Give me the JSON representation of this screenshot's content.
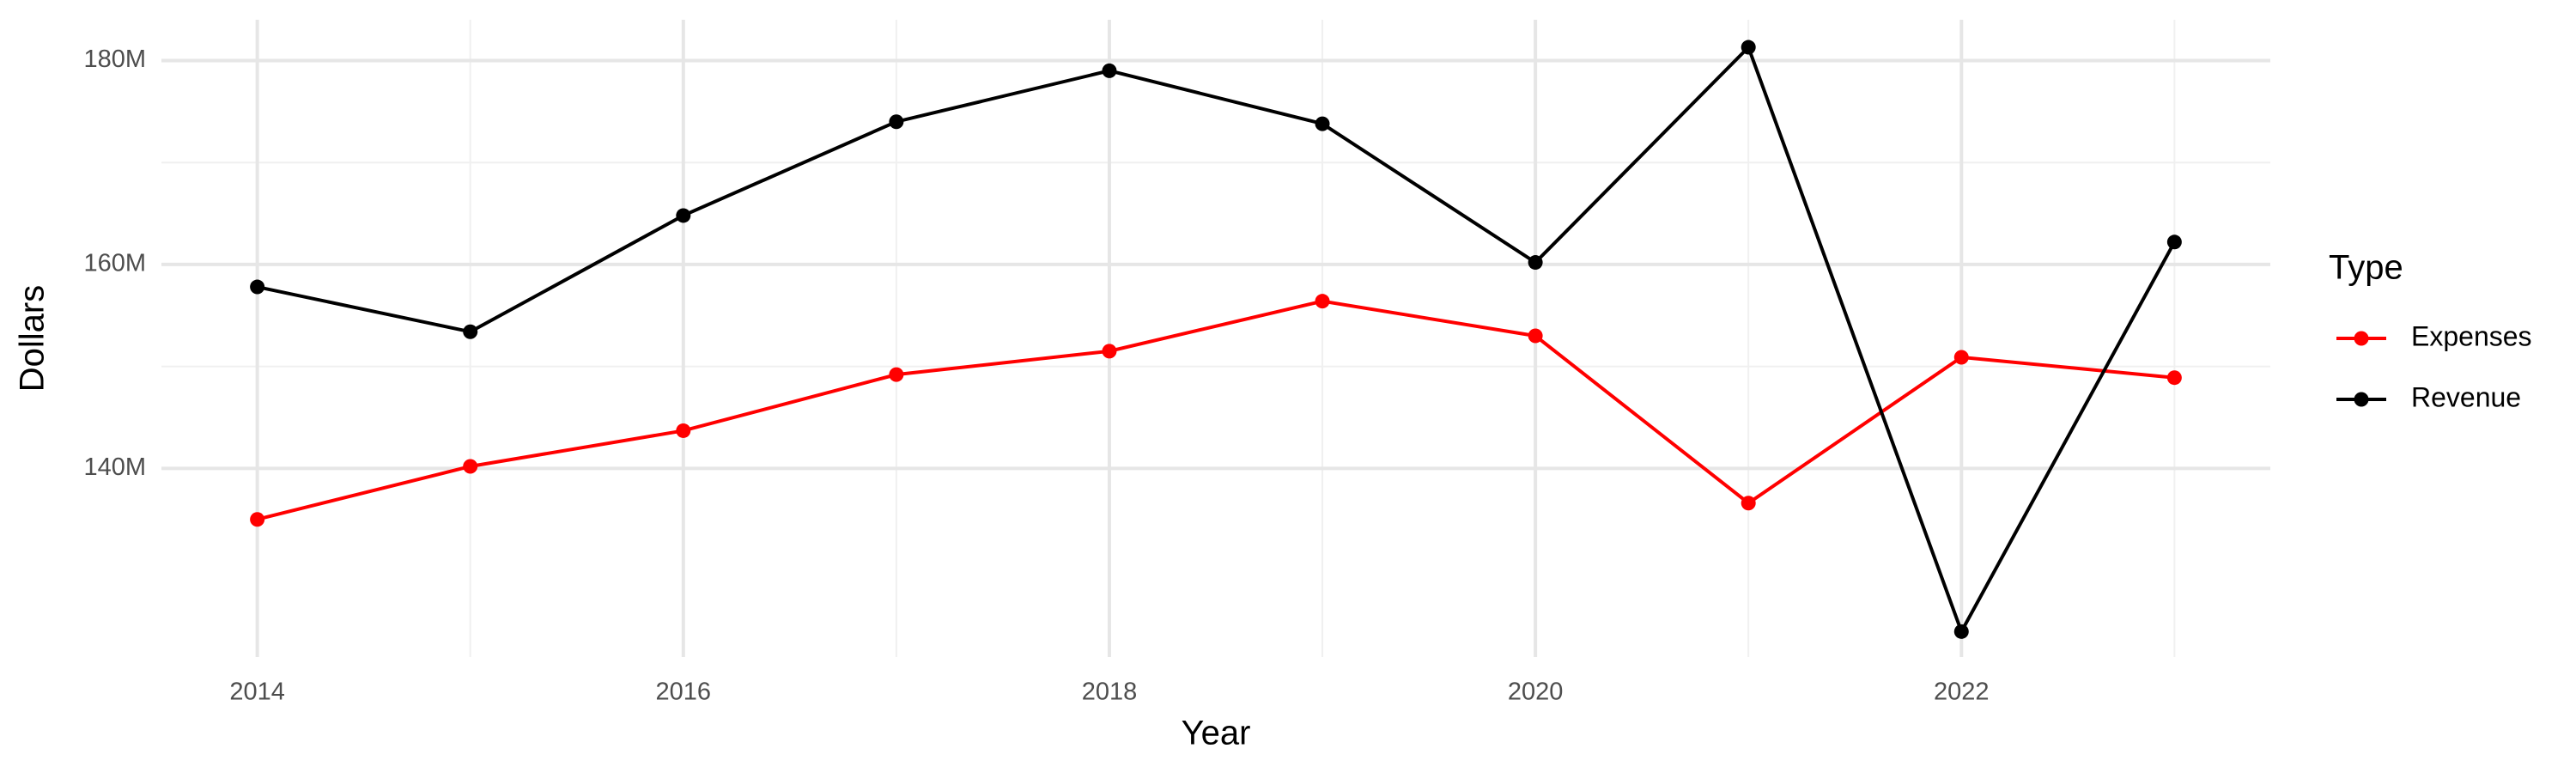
{
  "chart_data": {
    "type": "line",
    "x_label": "Year",
    "y_label": "Dollars",
    "legend_title": "Type",
    "x": [
      2014,
      2015,
      2016,
      2017,
      2018,
      2019,
      2020,
      2021,
      2022,
      2023
    ],
    "series": [
      {
        "name": "Expenses",
        "color": "#ff0000",
        "values": [
          135000000,
          140200000,
          143700000,
          149200000,
          151500000,
          156400000,
          153000000,
          136600000,
          150900000,
          148900000
        ]
      },
      {
        "name": "Revenue",
        "color": "#000000",
        "values": [
          157800000,
          153400000,
          164800000,
          174000000,
          179000000,
          173800000,
          160200000,
          181300000,
          124000000,
          162200000
        ]
      }
    ],
    "xlim": [
      2013.55,
      2023.45
    ],
    "xticks": [
      2014,
      2016,
      2018,
      2020,
      2022
    ],
    "ylim": [
      121500000,
      184000000
    ],
    "yticks": [
      {
        "value": 140000000,
        "label": "140M"
      },
      {
        "value": 160000000,
        "label": "160M"
      },
      {
        "value": 180000000,
        "label": "180M"
      }
    ],
    "grid": true,
    "legend": "right"
  }
}
